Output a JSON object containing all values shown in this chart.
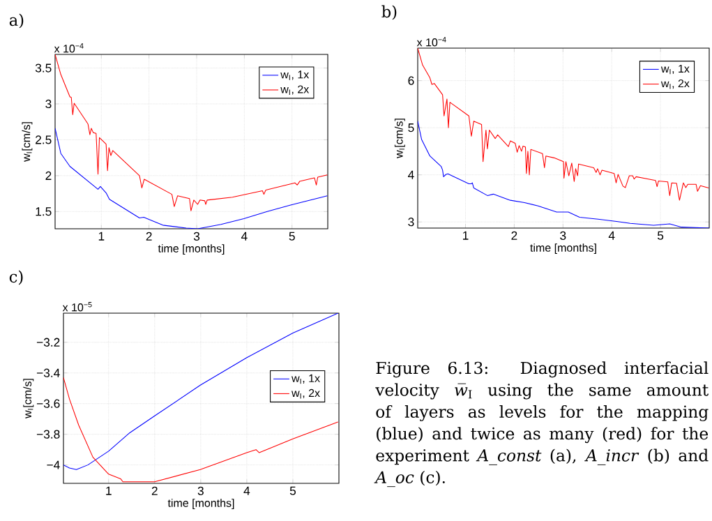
{
  "chart_data": [
    {
      "type": "line",
      "title": "a)",
      "xlabel": "time [months]",
      "ylabel": "w$_{I}$[cm/s]",
      "annotations": [
        "x 10$^{−4}$"
      ],
      "xlim": [
        0.03,
        5.75
      ],
      "ylim": [
        1.26,
        3.69
      ],
      "xticks": [
        1,
        2,
        3,
        4,
        5
      ],
      "yticks": [
        1.5,
        2,
        2.5,
        3,
        3.5
      ],
      "grid": true,
      "legend": "top right",
      "series": [
        {
          "name": "w$_{I}$, 1x",
          "color": "#0000ff",
          "x": [
            0.03,
            0.15,
            0.34,
            0.93,
            0.98,
            1.1,
            1.17,
            1.8,
            1.89,
            2.29,
            2.78,
            3.02,
            3.51,
            3.99,
            4.48,
            4.97,
            5.74
          ],
          "values": [
            2.66,
            2.31,
            2.13,
            1.81,
            1.85,
            1.76,
            1.67,
            1.41,
            1.42,
            1.31,
            1.27,
            1.26,
            1.32,
            1.4,
            1.5,
            1.59,
            1.72
          ]
        },
        {
          "name": "w$_{I}$, 2x",
          "color": "#ff0000",
          "x": [
            0.03,
            0.15,
            0.34,
            0.37,
            0.4,
            0.43,
            0.72,
            0.76,
            0.79,
            0.83,
            0.89,
            0.93,
            0.96,
            1.1,
            1.13,
            1.16,
            1.2,
            1.24,
            1.8,
            1.85,
            1.9,
            2.48,
            2.53,
            2.6,
            2.85,
            2.88,
            2.94,
            3.02,
            3.07,
            3.17,
            3.19,
            3.22,
            3.75,
            4.38,
            4.41,
            4.45,
            5.06,
            5.11,
            5.16,
            5.47,
            5.51,
            5.54,
            5.74
          ],
          "values": [
            3.69,
            3.41,
            3.1,
            3.09,
            2.85,
            3.01,
            2.72,
            2.57,
            2.66,
            2.6,
            2.59,
            2.02,
            2.53,
            2.44,
            2.07,
            2.39,
            2.28,
            2.35,
            2.0,
            1.83,
            1.95,
            1.74,
            1.57,
            1.72,
            1.68,
            1.51,
            1.66,
            1.6,
            1.66,
            1.65,
            1.6,
            1.66,
            1.7,
            1.79,
            1.74,
            1.8,
            1.9,
            1.87,
            1.92,
            1.97,
            1.87,
            1.98,
            2.01
          ]
        }
      ]
    },
    {
      "type": "line",
      "title": "b)",
      "xlabel": "time [months]",
      "ylabel": "w$_{I}$[cm/s]",
      "annotations": [
        "x 10$^{−4}$"
      ],
      "xlim": [
        0.02,
        6
      ],
      "ylim": [
        2.87,
        6.69
      ],
      "xticks": [
        1,
        2,
        3,
        4,
        5
      ],
      "yticks": [
        3,
        4,
        5,
        6
      ],
      "grid": true,
      "legend": "top right",
      "series": [
        {
          "name": "w$_{I}$, 1x",
          "color": "#0000ff",
          "x": [
            0.02,
            0.1,
            0.27,
            0.5,
            0.53,
            0.55,
            0.6,
            0.64,
            1.07,
            1.12,
            1.14,
            1.17,
            1.45,
            1.57,
            1.92,
            2.21,
            2.49,
            2.87,
            3.11,
            3.34,
            3.72,
            4.1,
            4.38,
            4.86,
            5.19,
            5.43,
            6.0
          ],
          "values": [
            5.14,
            4.75,
            4.4,
            4.18,
            4.1,
            3.96,
            4.01,
            4.02,
            3.81,
            3.81,
            3.83,
            3.72,
            3.56,
            3.59,
            3.46,
            3.41,
            3.34,
            3.21,
            3.21,
            3.1,
            3.06,
            3.01,
            2.97,
            2.93,
            2.96,
            2.89,
            2.87
          ]
        },
        {
          "name": "w$_{I}$, 2x",
          "color": "#ff0000",
          "x": [
            0.02,
            0.12,
            0.27,
            0.31,
            0.36,
            0.53,
            0.56,
            0.62,
            0.65,
            0.68,
            1.07,
            1.12,
            1.17,
            1.33,
            1.36,
            1.42,
            1.45,
            1.49,
            1.61,
            1.66,
            1.88,
            1.92,
            2.02,
            2.06,
            2.1,
            2.15,
            2.18,
            2.23,
            2.25,
            2.28,
            2.31,
            2.34,
            2.58,
            2.62,
            2.65,
            2.82,
            3.01,
            3.02,
            3.06,
            3.12,
            3.18,
            3.23,
            3.26,
            3.3,
            3.32,
            3.63,
            3.68,
            3.71,
            3.76,
            3.8,
            4.05,
            4.09,
            4.13,
            4.23,
            4.28,
            4.36,
            4.43,
            4.46,
            4.5,
            4.9,
            4.93,
            4.96,
            5.15,
            5.19,
            5.23,
            5.33,
            5.39,
            5.47,
            5.52,
            5.56,
            5.73,
            5.76,
            5.82,
            5.99
          ],
          "values": [
            6.69,
            6.33,
            6.06,
            5.92,
            5.94,
            5.7,
            5.25,
            5.61,
            5.0,
            5.54,
            5.25,
            4.82,
            5.14,
            5.07,
            4.28,
            4.95,
            4.55,
            4.95,
            4.77,
            4.85,
            4.6,
            4.72,
            4.67,
            4.48,
            4.62,
            4.5,
            4.61,
            4.59,
            4.03,
            4.5,
            4.0,
            4.54,
            4.45,
            4.15,
            4.4,
            4.36,
            4.28,
            3.93,
            4.28,
            3.98,
            4.25,
            3.86,
            4.13,
            3.98,
            4.23,
            4.15,
            4.05,
            4.13,
            4.0,
            4.1,
            4.03,
            3.83,
            4.01,
            3.76,
            3.73,
            3.98,
            3.98,
            3.91,
            3.96,
            3.88,
            3.75,
            3.87,
            3.85,
            3.56,
            3.83,
            3.82,
            3.46,
            3.83,
            3.73,
            3.8,
            3.8,
            3.65,
            3.77,
            3.72
          ]
        }
      ]
    },
    {
      "type": "line",
      "title": "c)",
      "xlabel": "time [months]",
      "ylabel": "w$_{I}$[cm/s]",
      "annotations": [
        "x 10$^{−5}$"
      ],
      "xlim": [
        0.02,
        6
      ],
      "ylim": [
        -4.12,
        -3.01
      ],
      "xticks": [
        1,
        2,
        3,
        4,
        5
      ],
      "yticks": [
        {
          "value": -4,
          "label": "−4"
        },
        {
          "value": -3.8,
          "label": "−3.8"
        },
        {
          "value": -3.6,
          "label": "−3.6"
        },
        {
          "value": -3.4,
          "label": "−3.4"
        },
        {
          "value": -3.2,
          "label": "−3.2"
        }
      ],
      "grid": true,
      "legend": "right",
      "series": [
        {
          "name": "w$_{I}$, 1x",
          "color": "#0000ff",
          "x": [
            0.02,
            0.15,
            0.3,
            0.55,
            1.0,
            1.46,
            2.0,
            2.99,
            4.0,
            5.0,
            5.98
          ],
          "values": [
            -4.0,
            -4.02,
            -4.03,
            -4.0,
            -3.91,
            -3.79,
            -3.68,
            -3.48,
            -3.3,
            -3.14,
            -3.01
          ]
        },
        {
          "name": "w$_{I}$, 2x",
          "color": "#ff0000",
          "x": [
            0.02,
            0.15,
            0.35,
            0.66,
            1.0,
            1.26,
            1.31,
            1.66,
            2.0,
            2.99,
            4.0,
            4.2,
            4.23,
            4.27,
            5.0,
            5.98
          ],
          "values": [
            -3.43,
            -3.57,
            -3.74,
            -3.95,
            -4.06,
            -4.09,
            -4.11,
            -4.11,
            -4.11,
            -4.03,
            -3.92,
            -3.9,
            null,
            -3.92,
            -3.83,
            -3.72
          ]
        }
      ]
    },
    {
      "type": "other",
      "annotations": [
        "Figure 6.13: Diagnosed interfacial velocity *w̅*$_{I}$ using the same amount of layers as levels for the mapping (blue) and twice as many (red) for the experiment *A_const* (a), *A_incr* (b) and *A_oc* (c)."
      ]
    }
  ]
}
